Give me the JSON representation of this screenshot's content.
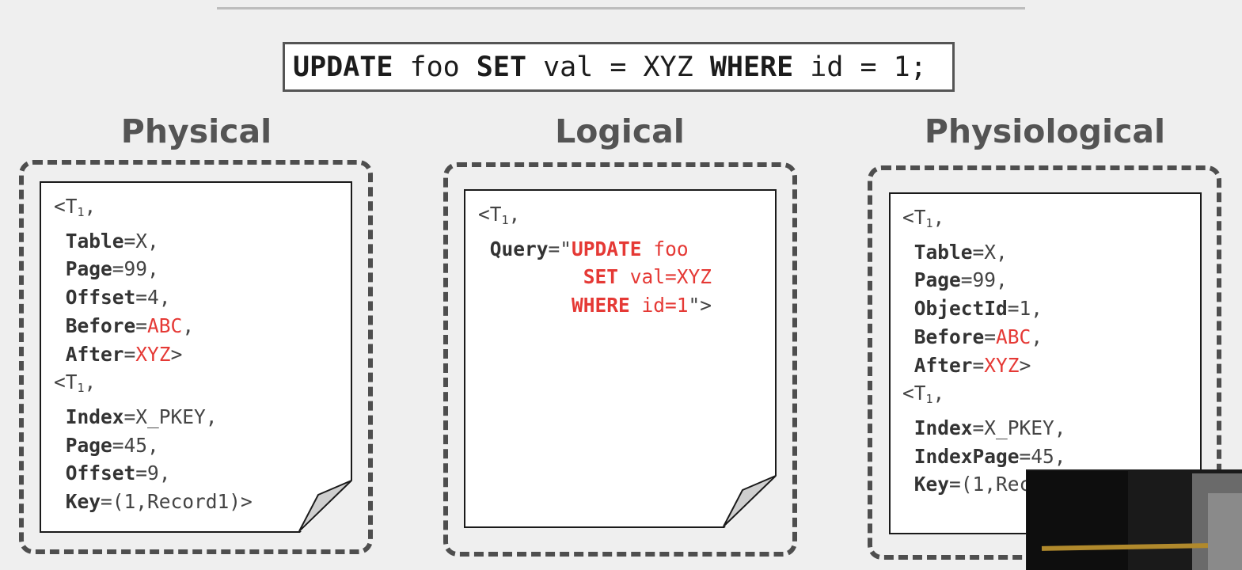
{
  "query": {
    "parts": [
      {
        "text": "UPDATE",
        "kw": true
      },
      {
        "text": " foo ",
        "kw": false
      },
      {
        "text": "SET",
        "kw": true
      },
      {
        "text": " val = XYZ ",
        "kw": false
      },
      {
        "text": "WHERE",
        "kw": true
      },
      {
        "text": " id = 1;",
        "kw": false
      }
    ]
  },
  "columns": [
    {
      "heading": "Physical",
      "lines": [
        [
          {
            "t": "<T"
          },
          {
            "t": "1",
            "sub": true
          },
          {
            "t": ","
          }
        ],
        [
          {
            "t": " "
          },
          {
            "t": "Table",
            "s": "f"
          },
          {
            "t": "=X,"
          }
        ],
        [
          {
            "t": " "
          },
          {
            "t": "Page",
            "s": "f"
          },
          {
            "t": "=99,"
          }
        ],
        [
          {
            "t": " "
          },
          {
            "t": "Offset",
            "s": "f"
          },
          {
            "t": "=4,"
          }
        ],
        [
          {
            "t": " "
          },
          {
            "t": "Before",
            "s": "f"
          },
          {
            "t": "="
          },
          {
            "t": "ABC",
            "s": "red"
          },
          {
            "t": ","
          }
        ],
        [
          {
            "t": " "
          },
          {
            "t": "After",
            "s": "f"
          },
          {
            "t": "="
          },
          {
            "t": "XYZ",
            "s": "red"
          },
          {
            "t": ">"
          }
        ],
        [
          {
            "t": "<T"
          },
          {
            "t": "1",
            "sub": true
          },
          {
            "t": ","
          }
        ],
        [
          {
            "t": " "
          },
          {
            "t": "Index",
            "s": "f"
          },
          {
            "t": "=X_PKEY,"
          }
        ],
        [
          {
            "t": " "
          },
          {
            "t": "Page",
            "s": "f"
          },
          {
            "t": "=45,"
          }
        ],
        [
          {
            "t": " "
          },
          {
            "t": "Offset",
            "s": "f"
          },
          {
            "t": "=9,"
          }
        ],
        [
          {
            "t": " "
          },
          {
            "t": "Key",
            "s": "f"
          },
          {
            "t": "=(1,Record1)>"
          }
        ]
      ]
    },
    {
      "heading": "Logical",
      "lines": [
        [
          {
            "t": "<T"
          },
          {
            "t": "1",
            "sub": true
          },
          {
            "t": ","
          }
        ],
        [
          {
            "t": " "
          },
          {
            "t": "Query",
            "s": "f"
          },
          {
            "t": "=\""
          },
          {
            "t": "UPDATE",
            "s": "redb"
          },
          {
            "t": " foo",
            "s": "red"
          }
        ],
        [
          {
            "t": "         "
          },
          {
            "t": "SET",
            "s": "redb"
          },
          {
            "t": " val=XYZ",
            "s": "red"
          }
        ],
        [
          {
            "t": "        "
          },
          {
            "t": "WHERE",
            "s": "redb"
          },
          {
            "t": " id=1",
            "s": "red"
          },
          {
            "t": "\">"
          }
        ]
      ]
    },
    {
      "heading": "Physiological",
      "lines": [
        [
          {
            "t": "<T"
          },
          {
            "t": "1",
            "sub": true
          },
          {
            "t": ","
          }
        ],
        [
          {
            "t": " "
          },
          {
            "t": "Table",
            "s": "f"
          },
          {
            "t": "=X,"
          }
        ],
        [
          {
            "t": " "
          },
          {
            "t": "Page",
            "s": "f"
          },
          {
            "t": "=99,"
          }
        ],
        [
          {
            "t": " "
          },
          {
            "t": "ObjectId",
            "s": "f"
          },
          {
            "t": "=1,"
          }
        ],
        [
          {
            "t": " "
          },
          {
            "t": "Before",
            "s": "f"
          },
          {
            "t": "="
          },
          {
            "t": "ABC",
            "s": "red"
          },
          {
            "t": ","
          }
        ],
        [
          {
            "t": " "
          },
          {
            "t": "After",
            "s": "f"
          },
          {
            "t": "="
          },
          {
            "t": "XYZ",
            "s": "red"
          },
          {
            "t": ">"
          }
        ],
        [
          {
            "t": "<T"
          },
          {
            "t": "1",
            "sub": true
          },
          {
            "t": ","
          }
        ],
        [
          {
            "t": " "
          },
          {
            "t": "Index",
            "s": "f"
          },
          {
            "t": "=X_PKEY,"
          }
        ],
        [
          {
            "t": " "
          },
          {
            "t": "IndexPage",
            "s": "f"
          },
          {
            "t": "=45,"
          }
        ],
        [
          {
            "t": " "
          },
          {
            "t": "Key",
            "s": "f"
          },
          {
            "t": "=(1,Record1)>"
          }
        ]
      ]
    }
  ]
}
